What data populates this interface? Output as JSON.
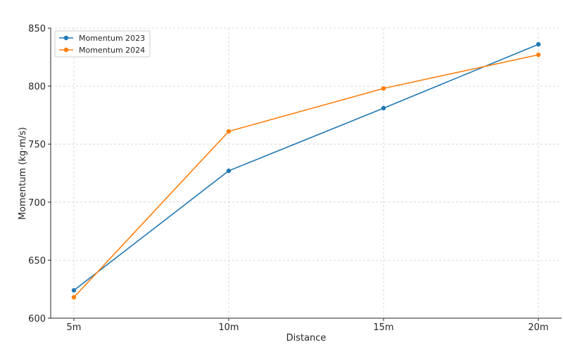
{
  "chart_data": {
    "type": "line",
    "title": "",
    "xlabel": "Distance",
    "ylabel": "Momentum (kg·m/s)",
    "categories": [
      "5m",
      "10m",
      "15m",
      "20m"
    ],
    "ylim": [
      600,
      850
    ],
    "yticks": [
      600,
      650,
      700,
      750,
      800,
      850
    ],
    "grid": true,
    "legend_position": "top-left",
    "series": [
      {
        "name": "Momentum 2023",
        "color": "#1f77b4",
        "values": [
          624,
          727,
          781,
          836
        ]
      },
      {
        "name": "Momentum 2024",
        "color": "#ff7f0e",
        "values": [
          618,
          761,
          798,
          827
        ]
      }
    ]
  }
}
